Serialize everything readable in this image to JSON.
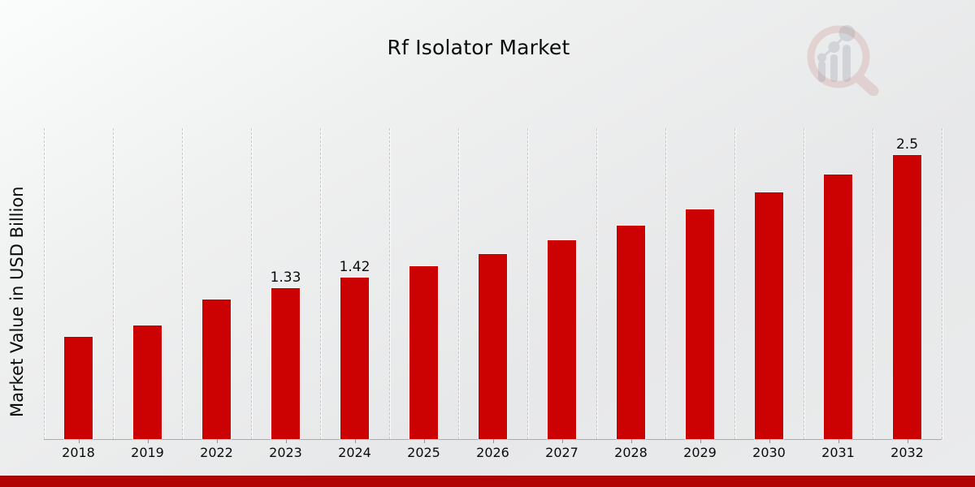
{
  "page": {
    "title": "Rf Isolator Market"
  },
  "chart_data": {
    "type": "bar",
    "title": "Rf Isolator Market",
    "xlabel": "",
    "ylabel": "Market Value in USD Billion",
    "categories": [
      "2018",
      "2019",
      "2022",
      "2023",
      "2024",
      "2025",
      "2026",
      "2027",
      "2028",
      "2029",
      "2030",
      "2031",
      "2032"
    ],
    "values": [
      0.9,
      1.0,
      1.23,
      1.33,
      1.42,
      1.52,
      1.63,
      1.75,
      1.88,
      2.02,
      2.17,
      2.33,
      2.5
    ],
    "data_labels": [
      "",
      "",
      "",
      "1.33",
      "1.42",
      "",
      "",
      "",
      "",
      "",
      "",
      "",
      "2.5"
    ],
    "ylim": [
      0,
      2.75
    ],
    "bar_color": "#cc0101",
    "grid": "vertical-dashed",
    "legend": "none"
  },
  "footer": {
    "band_color": "#b20404"
  },
  "watermark": {
    "icon": "magnifier-growth-chart-logo",
    "ring_color": "#cf8c8d",
    "bars_color": "#9aa0ab"
  }
}
